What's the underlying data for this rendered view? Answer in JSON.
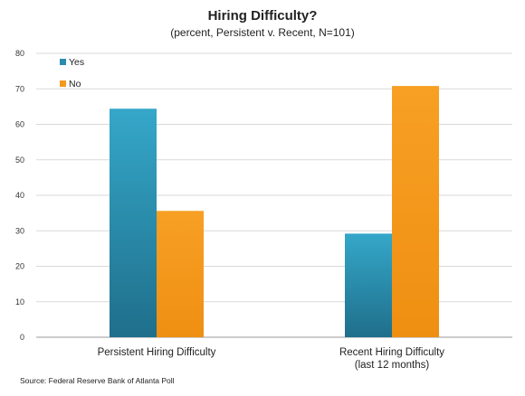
{
  "chart_data": {
    "type": "bar",
    "title": "Hiring Difficulty?",
    "subtitle": "(percent, Persistent v. Recent, N=101)",
    "categories": [
      [
        "Persistent Hiring Difficulty"
      ],
      [
        "Recent Hiring Difficulty",
        "(last 12 months)"
      ]
    ],
    "series": [
      {
        "name": "Yes",
        "values": [
          64.4,
          29.2
        ],
        "color": "#2b8cad"
      },
      {
        "name": "No",
        "values": [
          35.6,
          70.8
        ],
        "color": "#f39a1c"
      }
    ],
    "ylim": [
      0,
      80
    ],
    "yticks": [
      0,
      10,
      20,
      30,
      40,
      50,
      60,
      70,
      80
    ],
    "grid": true,
    "legend_position": "top-left",
    "source": "Source: Federal Reserve Bank of Atlanta Poll"
  }
}
